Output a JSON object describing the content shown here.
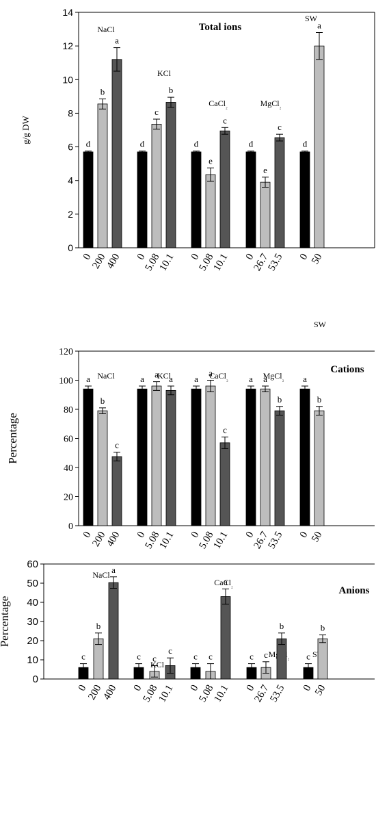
{
  "chart_data": [
    {
      "type": "bar",
      "title": "Total ions",
      "ylabel": "g/g DW",
      "ylim": [
        0,
        14
      ],
      "yticks": [
        0,
        2,
        4,
        6,
        8,
        10,
        12,
        14
      ],
      "groups": [
        {
          "label": "NaCl",
          "bars": [
            {
              "x": "0",
              "value": 5.7,
              "error": 0.05,
              "letter": "d",
              "shade": "black"
            },
            {
              "x": "200",
              "value": 8.55,
              "error": 0.3,
              "letter": "b",
              "shade": "light"
            },
            {
              "x": "400",
              "value": 11.2,
              "error": 0.7,
              "letter": "a",
              "shade": "dark"
            }
          ]
        },
        {
          "label": "KCl",
          "bars": [
            {
              "x": "0",
              "value": 5.7,
              "error": 0.05,
              "letter": "d",
              "shade": "black"
            },
            {
              "x": "5.08",
              "value": 7.35,
              "error": 0.3,
              "letter": "c",
              "shade": "light"
            },
            {
              "x": "10.1",
              "value": 8.65,
              "error": 0.3,
              "letter": "b",
              "shade": "dark"
            }
          ]
        },
        {
          "label": "CaCl₂",
          "bars": [
            {
              "x": "0",
              "value": 5.7,
              "error": 0.05,
              "letter": "d",
              "shade": "black"
            },
            {
              "x": "5.08",
              "value": 4.35,
              "error": 0.4,
              "letter": "e",
              "shade": "light"
            },
            {
              "x": "10.1",
              "value": 6.95,
              "error": 0.2,
              "letter": "c",
              "shade": "dark"
            }
          ]
        },
        {
          "label": "MgCl₂",
          "bars": [
            {
              "x": "0",
              "value": 5.7,
              "error": 0.05,
              "letter": "d",
              "shade": "black"
            },
            {
              "x": "26.7",
              "value": 3.9,
              "error": 0.3,
              "letter": "e",
              "shade": "light"
            },
            {
              "x": "53.5",
              "value": 6.55,
              "error": 0.2,
              "letter": "c",
              "shade": "dark"
            }
          ]
        },
        {
          "label": "SW",
          "bars": [
            {
              "x": "0",
              "value": 5.7,
              "error": 0.05,
              "letter": "d",
              "shade": "black"
            },
            {
              "x": "50",
              "value": 12.0,
              "error": 0.8,
              "letter": "a",
              "shade": "light"
            }
          ]
        }
      ]
    },
    {
      "type": "bar",
      "title": "Cations",
      "ylabel": "Percentage",
      "ylim": [
        0,
        120
      ],
      "yticks": [
        0,
        20,
        40,
        60,
        80,
        100,
        120
      ],
      "groups": [
        {
          "label": "NaCl",
          "bars": [
            {
              "x": "0",
              "value": 94,
              "error": 2,
              "letter": "a",
              "shade": "black"
            },
            {
              "x": "200",
              "value": 79,
              "error": 2,
              "letter": "b",
              "shade": "light"
            },
            {
              "x": "400",
              "value": 47.5,
              "error": 3,
              "letter": "c",
              "shade": "dark"
            }
          ]
        },
        {
          "label": "KCl",
          "bars": [
            {
              "x": "0",
              "value": 94,
              "error": 2,
              "letter": "a",
              "shade": "black"
            },
            {
              "x": "5.08",
              "value": 96,
              "error": 3,
              "letter": "a",
              "shade": "light"
            },
            {
              "x": "10.1",
              "value": 93,
              "error": 3,
              "letter": "a",
              "shade": "dark"
            }
          ]
        },
        {
          "label": "CaCl₂",
          "bars": [
            {
              "x": "0",
              "value": 94,
              "error": 2,
              "letter": "a",
              "shade": "black"
            },
            {
              "x": "5.08",
              "value": 96,
              "error": 4,
              "letter": "a",
              "shade": "light"
            },
            {
              "x": "10.1",
              "value": 57,
              "error": 4,
              "letter": "c",
              "shade": "dark"
            }
          ]
        },
        {
          "label": "MgCl₂",
          "bars": [
            {
              "x": "0",
              "value": 94,
              "error": 2,
              "letter": "a",
              "shade": "black"
            },
            {
              "x": "26.7",
              "value": 94,
              "error": 2,
              "letter": "a",
              "shade": "light"
            },
            {
              "x": "53.5",
              "value": 79,
              "error": 3,
              "letter": "b",
              "shade": "dark"
            }
          ]
        },
        {
          "label": "SW",
          "bars": [
            {
              "x": "0",
              "value": 94,
              "error": 2,
              "letter": "a",
              "shade": "black"
            },
            {
              "x": "50",
              "value": 79,
              "error": 3,
              "letter": "b",
              "shade": "light"
            }
          ]
        }
      ]
    },
    {
      "type": "bar",
      "title": "Anions",
      "ylabel": "Percentage",
      "ylim": [
        0,
        60
      ],
      "yticks": [
        0,
        10,
        20,
        30,
        40,
        50,
        60
      ],
      "groups": [
        {
          "label": "NaCl",
          "bars": [
            {
              "x": "0",
              "value": 6,
              "error": 2,
              "letter": "c",
              "shade": "black"
            },
            {
              "x": "200",
              "value": 21,
              "error": 3,
              "letter": "b",
              "shade": "light"
            },
            {
              "x": "400",
              "value": 50.3,
              "error": 3,
              "letter": "a",
              "shade": "dark"
            }
          ]
        },
        {
          "label": "KCl",
          "bars": [
            {
              "x": "0",
              "value": 6,
              "error": 2,
              "letter": "c",
              "shade": "black"
            },
            {
              "x": "5.08",
              "value": 4,
              "error": 3,
              "letter": "c",
              "shade": "light"
            },
            {
              "x": "10.1",
              "value": 7,
              "error": 4,
              "letter": "c",
              "shade": "dark"
            }
          ]
        },
        {
          "label": "CaCl₂",
          "bars": [
            {
              "x": "0",
              "value": 6,
              "error": 2,
              "letter": "c",
              "shade": "black"
            },
            {
              "x": "5.08",
              "value": 4,
              "error": 4,
              "letter": "c",
              "shade": "light"
            },
            {
              "x": "10.1",
              "value": 43,
              "error": 4,
              "letter": "a",
              "shade": "dark"
            }
          ]
        },
        {
          "label": "MgCl₂",
          "bars": [
            {
              "x": "0",
              "value": 6,
              "error": 2,
              "letter": "c",
              "shade": "black"
            },
            {
              "x": "26.7",
              "value": 6,
              "error": 3,
              "letter": "c",
              "shade": "light"
            },
            {
              "x": "53.5",
              "value": 21,
              "error": 3,
              "letter": "b",
              "shade": "dark"
            }
          ]
        },
        {
          "label": "SW",
          "bars": [
            {
              "x": "0",
              "value": 6,
              "error": 2,
              "letter": "c",
              "shade": "black"
            },
            {
              "x": "50",
              "value": 21,
              "error": 2,
              "letter": "b",
              "shade": "light"
            }
          ]
        }
      ]
    }
  ],
  "colors": {
    "black": "#000000",
    "light": "#bdbdbd",
    "dark": "#555555",
    "outline": "#000000"
  }
}
